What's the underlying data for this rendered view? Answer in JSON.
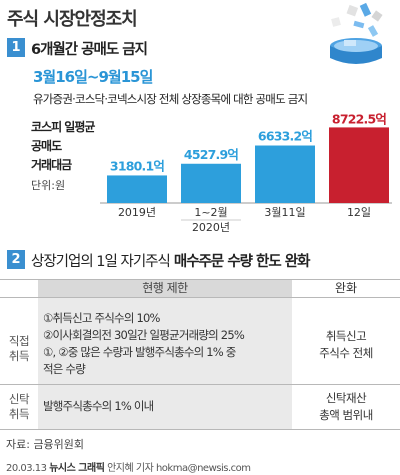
{
  "title": "주식 시장안정조치",
  "section1": {
    "number": "1",
    "heading": "6개월간 공매도 금지",
    "date_range": "3월16일~9월15일",
    "subtitle": "유가증권·코스닥·코넥스시장 전체 상장종목에 대한 공매도 금지"
  },
  "chart_data": {
    "type": "bar",
    "title_lines": [
      "코스피 일평균",
      "공매도",
      "거래대금"
    ],
    "unit": "단위:원",
    "categories": [
      "2019년",
      "1~2월",
      "3월11일",
      "12일"
    ],
    "category_sublabels": [
      "",
      "2020년",
      "",
      ""
    ],
    "values": [
      3180.1,
      4527.9,
      6633.2,
      8722.5
    ],
    "value_labels": [
      "3180.1억",
      "4527.9억",
      "6633.2억",
      "8722.5억"
    ],
    "colors": [
      "#2d9fdc",
      "#2d9fdc",
      "#2d9fdc",
      "#c8202f"
    ],
    "ylim": [
      0,
      9000
    ]
  },
  "section2": {
    "number": "2",
    "heading_plain": "상장기업의 1일 자기주식",
    "heading_bold": "매수주문 수량 한도 완화"
  },
  "table": {
    "col_current": "현행 제한",
    "col_relief": "완화",
    "rows": [
      {
        "head": [
          "직접",
          "취득"
        ],
        "current": [
          "①취득신고 주식수의 10%",
          "②이사회결의전 30일간 일평균거래량의 25%",
          "①, ②중 많은 수량과 발행주식총수의 1% 중",
          "적은 수량"
        ],
        "relief": [
          "취득신고",
          "주식수 전체"
        ]
      },
      {
        "head": [
          "신탁",
          "취득"
        ],
        "current": [
          "발행주식총수의 1% 이내"
        ],
        "relief": [
          "신탁재산",
          "총액 범위내"
        ]
      }
    ]
  },
  "source": "자료: 금융위원회",
  "credit": {
    "date": "20.03.13",
    "org": "뉴시스 그래픽",
    "author": "안지혜 기자",
    "email": "hokma@newsis.com"
  }
}
